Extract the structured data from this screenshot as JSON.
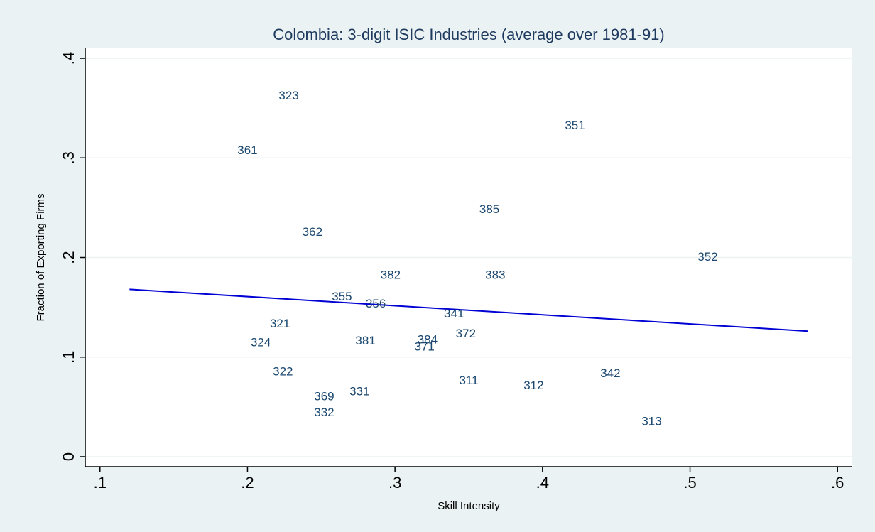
{
  "chart_data": {
    "type": "scatter",
    "title": "Colombia: 3-digit ISIC Industries (average over 1981-91)",
    "xlabel": "Skill Intensity",
    "ylabel": "Fraction of Exporting Firms",
    "xlim": [
      0.09,
      0.61
    ],
    "ylim": [
      -0.01,
      0.41
    ],
    "x_ticks": [
      0.1,
      0.2,
      0.3,
      0.4,
      0.5,
      0.6
    ],
    "x_tick_labels": [
      ".1",
      ".2",
      ".3",
      ".4",
      ".5",
      ".6"
    ],
    "y_ticks": [
      0,
      0.1,
      0.2,
      0.3,
      0.4
    ],
    "y_tick_labels": [
      "0",
      ".1",
      ".2",
      ".3",
      ".4"
    ],
    "grid": true,
    "marker_label_color": "#1a476f",
    "fit_line_color": "#0000d4",
    "points": [
      {
        "label": "323",
        "x": 0.228,
        "y": 0.363
      },
      {
        "label": "351",
        "x": 0.422,
        "y": 0.333
      },
      {
        "label": "361",
        "x": 0.2,
        "y": 0.308
      },
      {
        "label": "385",
        "x": 0.364,
        "y": 0.249
      },
      {
        "label": "362",
        "x": 0.244,
        "y": 0.226
      },
      {
        "label": "352",
        "x": 0.512,
        "y": 0.201
      },
      {
        "label": "382",
        "x": 0.297,
        "y": 0.183
      },
      {
        "label": "383",
        "x": 0.368,
        "y": 0.183
      },
      {
        "label": "355",
        "x": 0.264,
        "y": 0.161
      },
      {
        "label": "356",
        "x": 0.287,
        "y": 0.154
      },
      {
        "label": "341",
        "x": 0.34,
        "y": 0.144
      },
      {
        "label": "321",
        "x": 0.222,
        "y": 0.134
      },
      {
        "label": "372",
        "x": 0.348,
        "y": 0.124
      },
      {
        "label": "324",
        "x": 0.209,
        "y": 0.115
      },
      {
        "label": "381",
        "x": 0.28,
        "y": 0.117
      },
      {
        "label": "384",
        "x": 0.322,
        "y": 0.118
      },
      {
        "label": "371",
        "x": 0.32,
        "y": 0.111
      },
      {
        "label": "322",
        "x": 0.224,
        "y": 0.086
      },
      {
        "label": "311",
        "x": 0.35,
        "y": 0.077
      },
      {
        "label": "312",
        "x": 0.394,
        "y": 0.072
      },
      {
        "label": "342",
        "x": 0.446,
        "y": 0.084
      },
      {
        "label": "331",
        "x": 0.276,
        "y": 0.066
      },
      {
        "label": "369",
        "x": 0.252,
        "y": 0.061
      },
      {
        "label": "332",
        "x": 0.252,
        "y": 0.045
      },
      {
        "label": "313",
        "x": 0.474,
        "y": 0.036
      }
    ],
    "fit_line": {
      "x": [
        0.12,
        0.58
      ],
      "y": [
        0.168,
        0.126
      ]
    }
  }
}
